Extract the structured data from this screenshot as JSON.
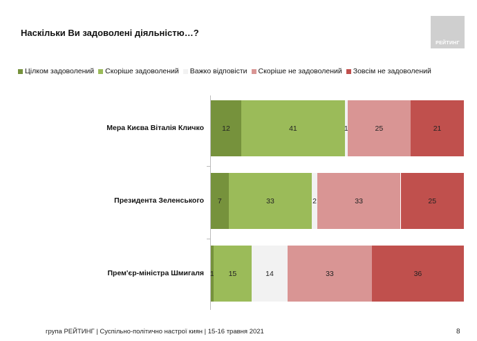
{
  "logo_text": "РЕЙТИНГ",
  "footer": "група РЕЙТИНГ  | Суспільно-політично настрої киян  | 15-16 травня 2021",
  "page_number": "8",
  "chart_data": {
    "type": "bar",
    "orientation": "horizontal-stacked",
    "title": "Наскільки Ви задоволені діяльністю…?",
    "legend_position": "top",
    "categories": [
      "Мера Києва Віталія Кличко",
      "Президента Зеленського",
      "Прем'єр-міністра Шмигаля"
    ],
    "series": [
      {
        "name": "Цілком задоволений",
        "color": "#76923c",
        "values": [
          12,
          7,
          1
        ]
      },
      {
        "name": "Скоріше задоволений",
        "color": "#9bbb59",
        "values": [
          41,
          33,
          15
        ]
      },
      {
        "name": "Важко відповісти",
        "color": "#f2f2f2",
        "values": [
          1,
          2,
          14
        ]
      },
      {
        "name": "Скоріше не задоволений",
        "color": "#d99594",
        "values": [
          25,
          33,
          33
        ]
      },
      {
        "name": "Зовсім не задоволений",
        "color": "#c0504d",
        "values": [
          21,
          25,
          36
        ]
      }
    ]
  }
}
